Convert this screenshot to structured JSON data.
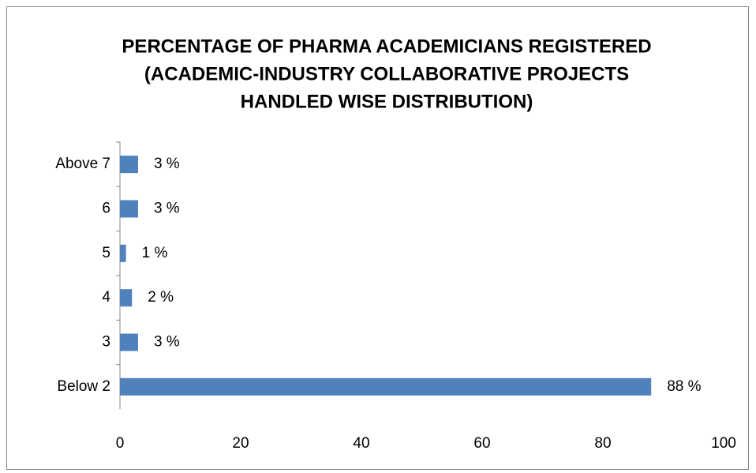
{
  "chart_data": {
    "type": "bar",
    "orientation": "horizontal",
    "title": [
      "PERCENTAGE OF PHARMA ACADEMICIANS REGISTERED",
      "(ACADEMIC-INDUSTRY COLLABORATIVE PROJECTS",
      "HANDLED WISE  DISTRIBUTION)"
    ],
    "categories": [
      "Above 7",
      "6",
      "5",
      "4",
      "3",
      "Below 2"
    ],
    "values": [
      3,
      3,
      1,
      2,
      3,
      88
    ],
    "value_labels": [
      "3 %",
      "3 %",
      "1 %",
      "2 %",
      "3 %",
      "88 %"
    ],
    "color": "#4f81bd",
    "xlim": [
      0,
      100
    ],
    "xticks": [
      0,
      20,
      40,
      60,
      80,
      100
    ],
    "grid": false
  }
}
